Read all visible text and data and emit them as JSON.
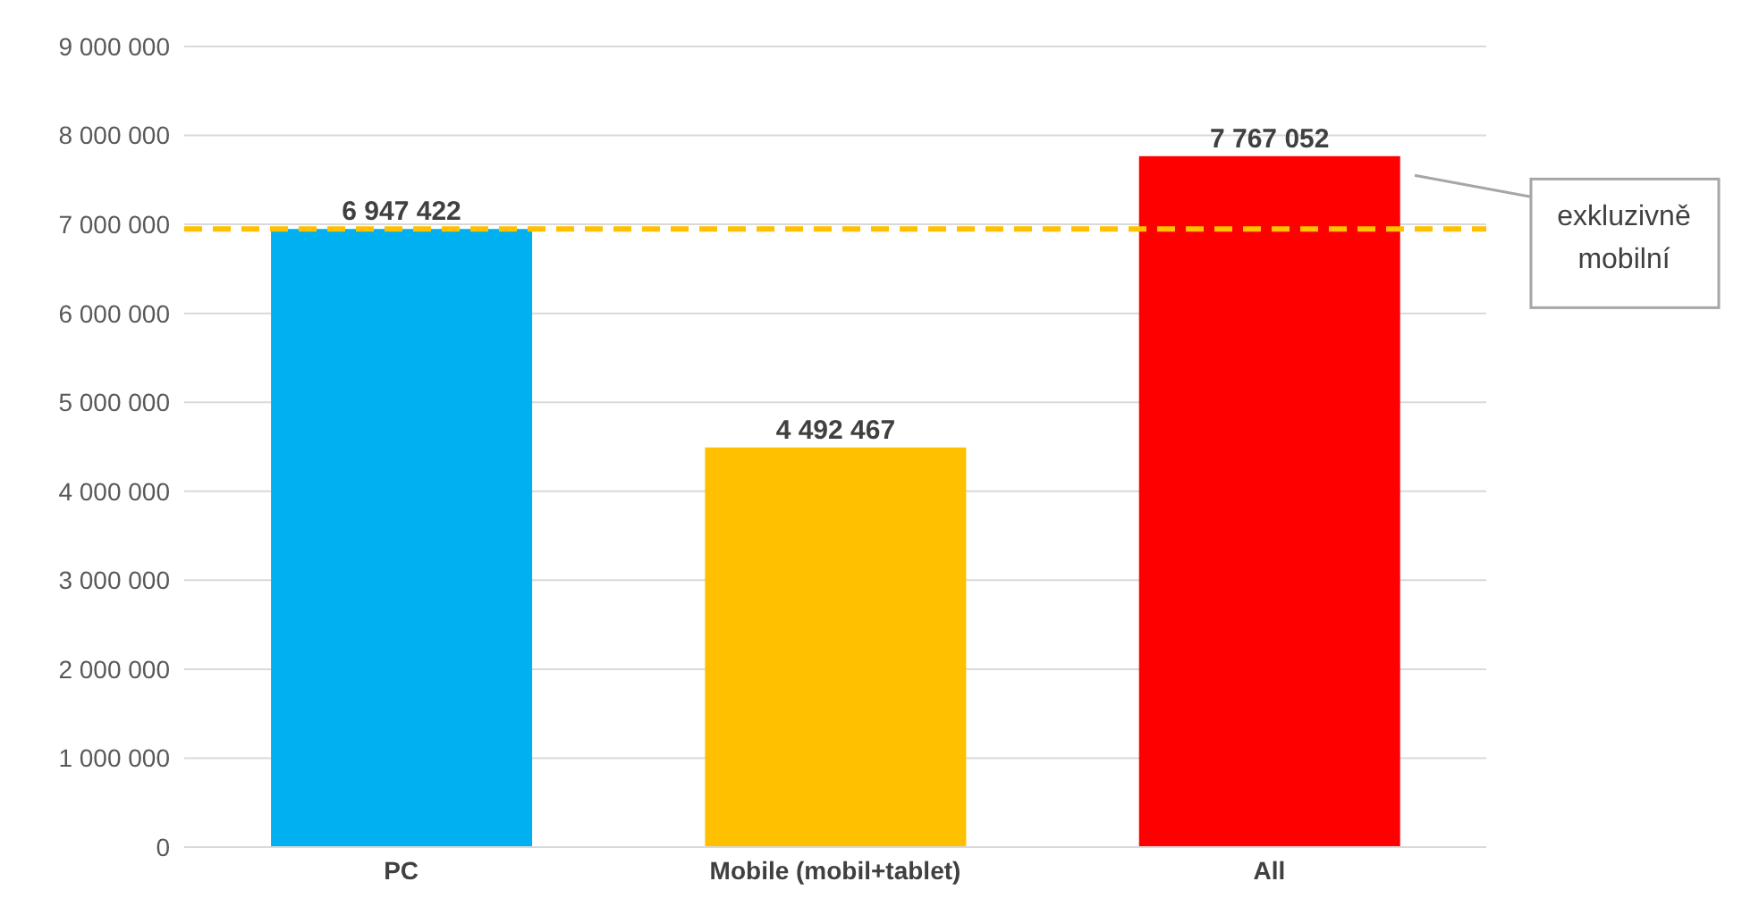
{
  "chart_data": {
    "type": "bar",
    "categories": [
      "PC",
      "Mobile (mobil+tablet)",
      "All"
    ],
    "values": [
      6947422,
      4492467,
      7767052
    ],
    "colors": [
      "#00b0f0",
      "#ffc000",
      "#ff0000"
    ],
    "value_labels": [
      "6 947 422",
      "4 492 467",
      "7 767 052"
    ],
    "ylim": [
      0,
      9000000
    ],
    "yticks": [
      {
        "value": 0,
        "label": "0"
      },
      {
        "value": 1000000,
        "label": "1 000 000"
      },
      {
        "value": 2000000,
        "label": "2 000 000"
      },
      {
        "value": 3000000,
        "label": "3 000 000"
      },
      {
        "value": 4000000,
        "label": "4 000 000"
      },
      {
        "value": 5000000,
        "label": "5 000 000"
      },
      {
        "value": 6000000,
        "label": "6 000 000"
      },
      {
        "value": 7000000,
        "label": "7 000 000"
      },
      {
        "value": 8000000,
        "label": "8 000 000"
      },
      {
        "value": 9000000,
        "label": "9 000 000"
      }
    ],
    "grid": "y",
    "legend": false,
    "ref_lines": [
      {
        "axis": "y",
        "value": 6947422,
        "label": "exkluzivně mobilní",
        "color": "#ffc000",
        "line_style": "dashed"
      }
    ]
  }
}
